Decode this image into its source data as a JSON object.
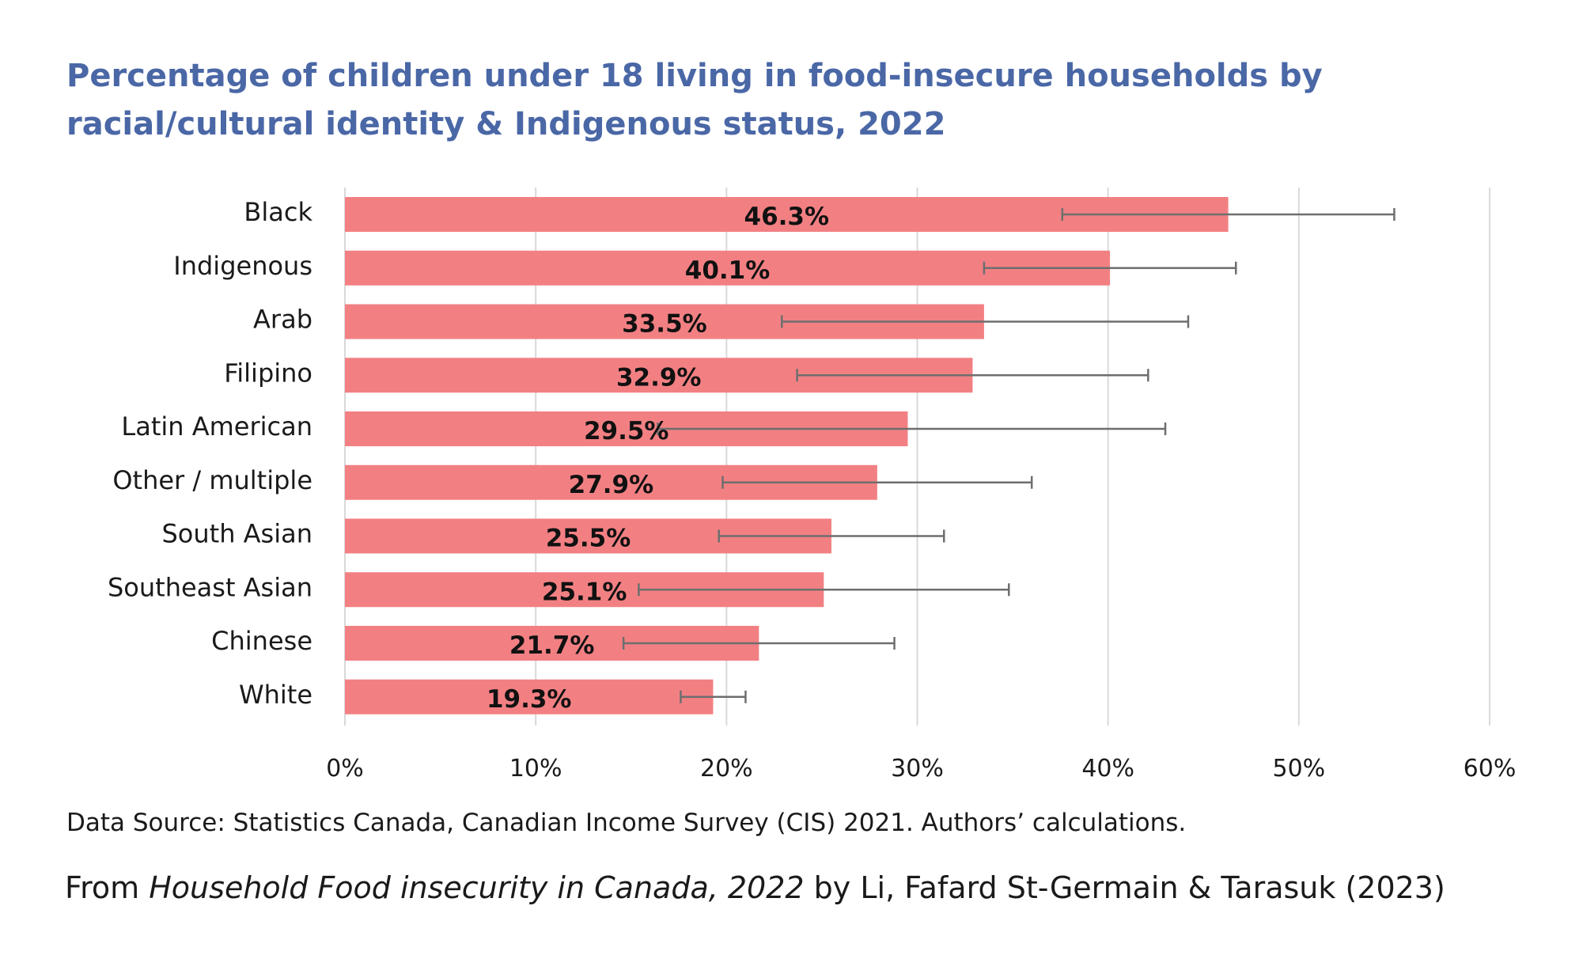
{
  "title": "Percentage of children under 18 living in food-insecure households by racial/cultural identity & Indigenous status, 2022",
  "source_note": "Data Source: Statistics Canada, Canadian Income Survey (CIS) 2021. Authors’ calculations.",
  "citation": {
    "prefix": "From ",
    "title_italic": "Household Food insecurity in Canada, 2022",
    "suffix": " by Li, Fafard St-Germain & Tarasuk (2023)"
  },
  "colors": {
    "title": "#4a67a6",
    "bar": "#f28083",
    "error_bar": "#6e6e6e",
    "grid": "#d9d9d9",
    "text": "#1a1a1a"
  },
  "chart_data": {
    "type": "bar",
    "orientation": "horizontal",
    "categories": [
      "Black",
      "Indigenous",
      "Arab",
      "Filipino",
      "Latin American",
      "Other / multiple",
      "South Asian",
      "Southeast Asian",
      "Chinese",
      "White"
    ],
    "values": [
      46.3,
      40.1,
      33.5,
      32.9,
      29.5,
      27.9,
      25.5,
      25.1,
      21.7,
      19.3
    ],
    "data_labels": [
      "46.3%",
      "40.1%",
      "33.5%",
      "32.9%",
      "29.5%",
      "27.9%",
      "25.5%",
      "25.1%",
      "21.7%",
      "19.3%"
    ],
    "error_low": [
      37.6,
      33.5,
      22.9,
      23.7,
      16.4,
      19.8,
      19.6,
      15.4,
      14.6,
      17.6
    ],
    "error_high": [
      55.0,
      46.7,
      44.2,
      42.1,
      43.0,
      36.0,
      31.4,
      34.8,
      28.8,
      21.0
    ],
    "xlim": [
      0,
      60
    ],
    "x_ticks": [
      0,
      10,
      20,
      30,
      40,
      50,
      60
    ],
    "x_tick_labels": [
      "0%",
      "10%",
      "20%",
      "30%",
      "40%",
      "50%",
      "60%"
    ],
    "grid": true,
    "legend": "none"
  }
}
